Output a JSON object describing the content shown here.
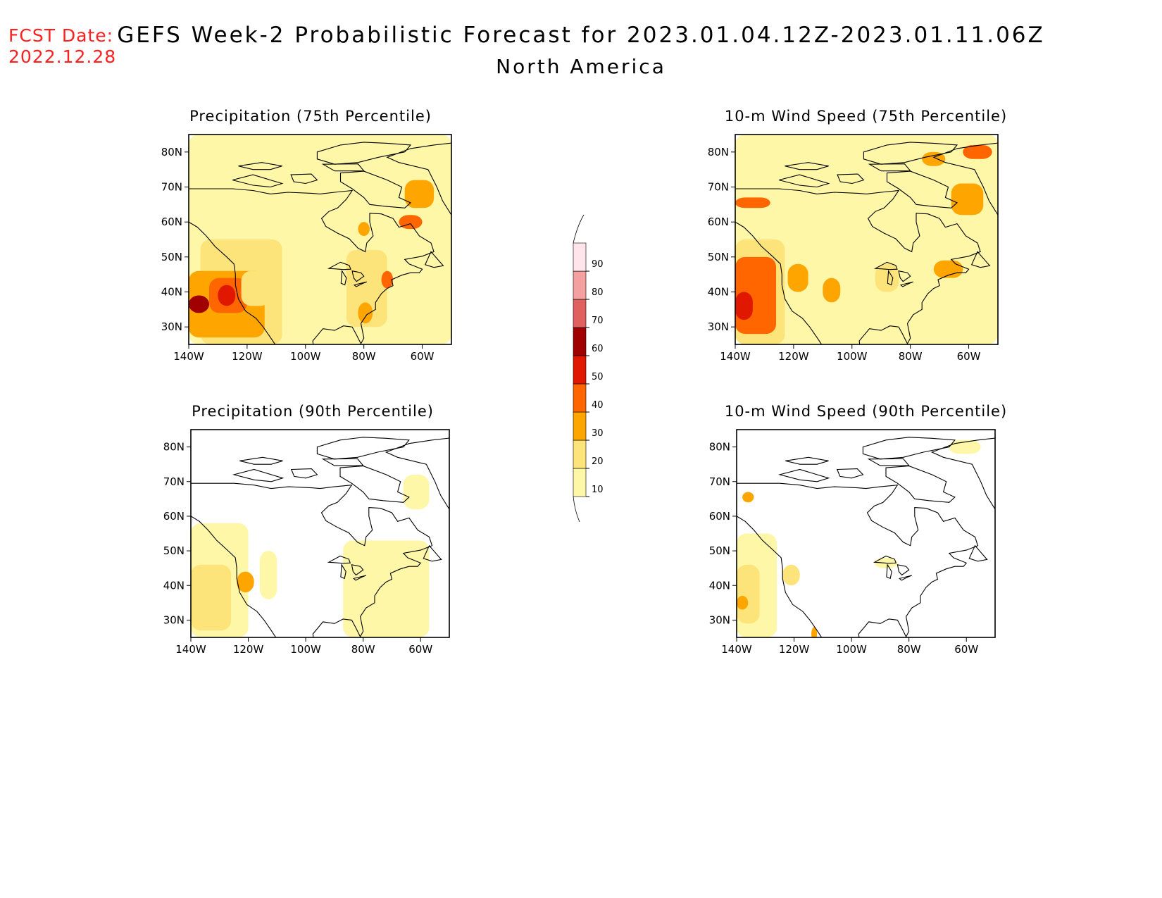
{
  "header": {
    "fcst_label": "FCST Date:",
    "fcst_date": "2022.12.28",
    "title": "GEFS Week-2 Probabilistic Forecast for 2023.01.04.12Z-2023.01.11.06Z",
    "region": "North America"
  },
  "axes": {
    "lat_labels": [
      "30N",
      "40N",
      "50N",
      "60N",
      "70N",
      "80N"
    ],
    "lon_labels": [
      "140W",
      "120W",
      "100W",
      "80W",
      "60W"
    ]
  },
  "panels": [
    {
      "id": "precip75",
      "title": "Precipitation (75th Percentile)"
    },
    {
      "id": "wind75",
      "title": "10-m Wind Speed (75th Percentile)"
    },
    {
      "id": "precip90",
      "title": "Precipitation (90th Percentile)"
    },
    {
      "id": "wind90",
      "title": "10-m Wind Speed (90th Percentile)"
    }
  ],
  "colorbar": {
    "levels": [
      "10",
      "20",
      "30",
      "40",
      "50",
      "60",
      "70",
      "80",
      "90"
    ],
    "colors": [
      "#fff7a8",
      "#fde47a",
      "#ffa500",
      "#ff6600",
      "#e01800",
      "#a00000",
      "#e06060",
      "#f4a0a0",
      "#ffe4ec"
    ]
  }
}
